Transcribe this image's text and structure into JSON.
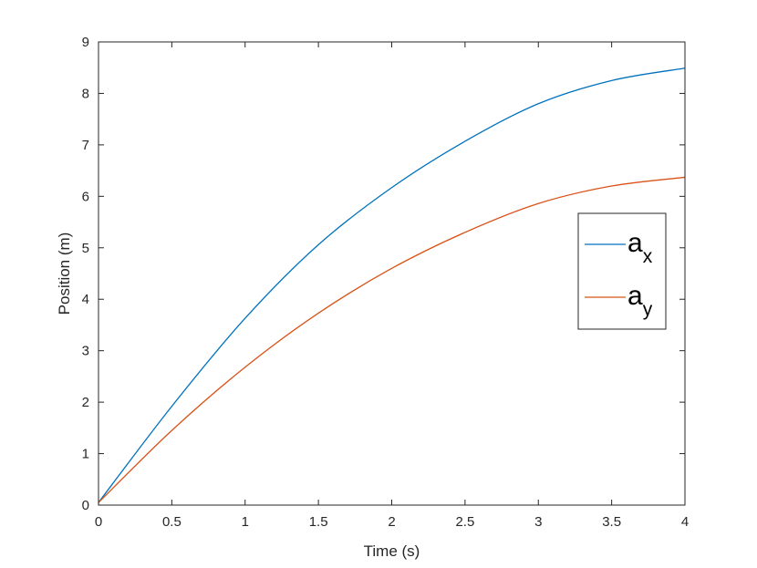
{
  "chart_data": {
    "type": "line",
    "xlabel": "Time (s)",
    "ylabel": "Position (m)",
    "xlim": [
      0,
      4
    ],
    "ylim": [
      0,
      9
    ],
    "xticks": [
      0,
      0.5,
      1,
      1.5,
      2,
      2.5,
      3,
      3.5,
      4
    ],
    "xtick_labels": [
      "0",
      "0.5",
      "1",
      "1.5",
      "2",
      "2.5",
      "3",
      "3.5",
      "4"
    ],
    "yticks": [
      0,
      1,
      2,
      3,
      4,
      5,
      6,
      7,
      8,
      9
    ],
    "ytick_labels": [
      "0",
      "1",
      "2",
      "3",
      "4",
      "5",
      "6",
      "7",
      "8",
      "9"
    ],
    "grid": false,
    "legend_position": "right",
    "series": [
      {
        "name": "a",
        "subscript": "x",
        "color": "#0072BD",
        "x": [
          0,
          0.5,
          1,
          1.5,
          2,
          2.5,
          3,
          3.5,
          4
        ],
        "y": [
          0.05,
          1.92,
          3.63,
          5.06,
          6.17,
          7.07,
          7.8,
          8.25,
          8.49
        ]
      },
      {
        "name": "a",
        "subscript": "y",
        "color": "#D95319",
        "x": [
          0,
          0.5,
          1,
          1.5,
          2,
          2.5,
          3,
          3.5,
          4
        ],
        "y": [
          0.05,
          1.45,
          2.68,
          3.73,
          4.6,
          5.3,
          5.86,
          6.2,
          6.37
        ]
      }
    ]
  }
}
